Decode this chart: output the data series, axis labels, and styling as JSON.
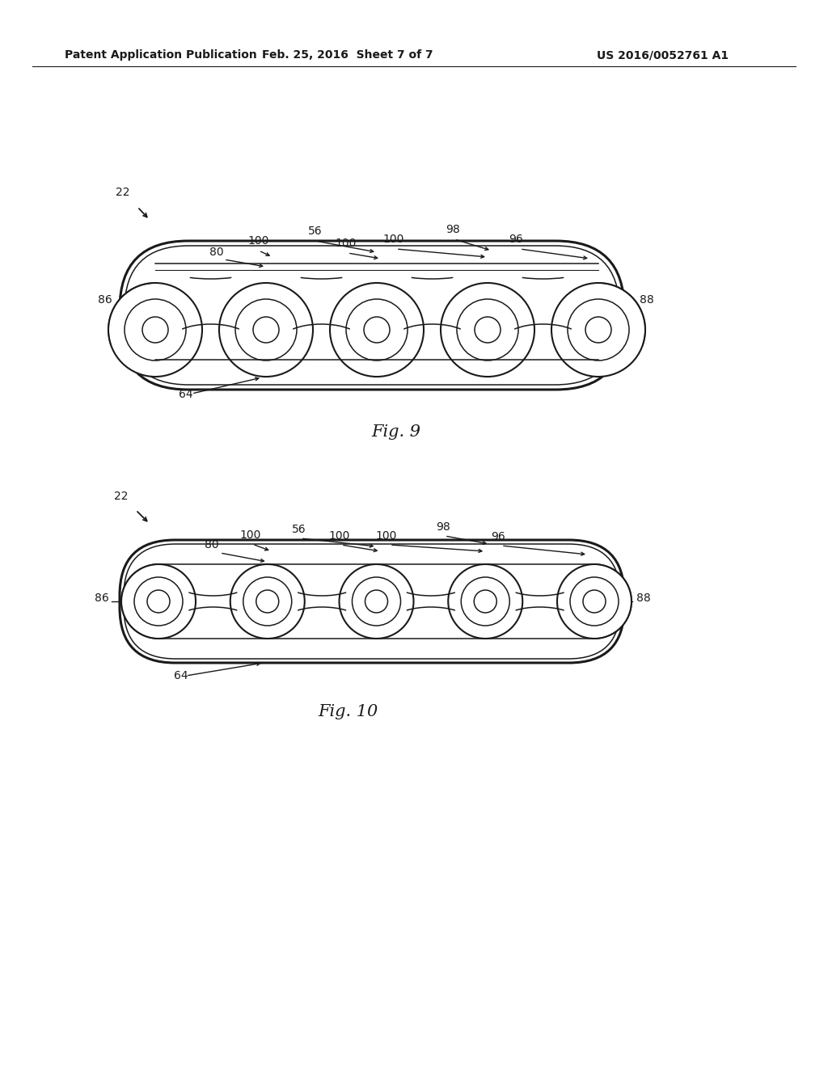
{
  "bg_color": "#ffffff",
  "line_color": "#1a1a1a",
  "header_left": "Patent Application Publication",
  "header_center": "Feb. 25, 2016  Sheet 7 of 7",
  "header_right": "US 2016/0052761 A1",
  "fig9_label": "Fig. 9",
  "fig10_label": "Fig. 10",
  "annotation_fontsize": 10,
  "header_fontsize": 10,
  "fig_label_fontsize": 15
}
